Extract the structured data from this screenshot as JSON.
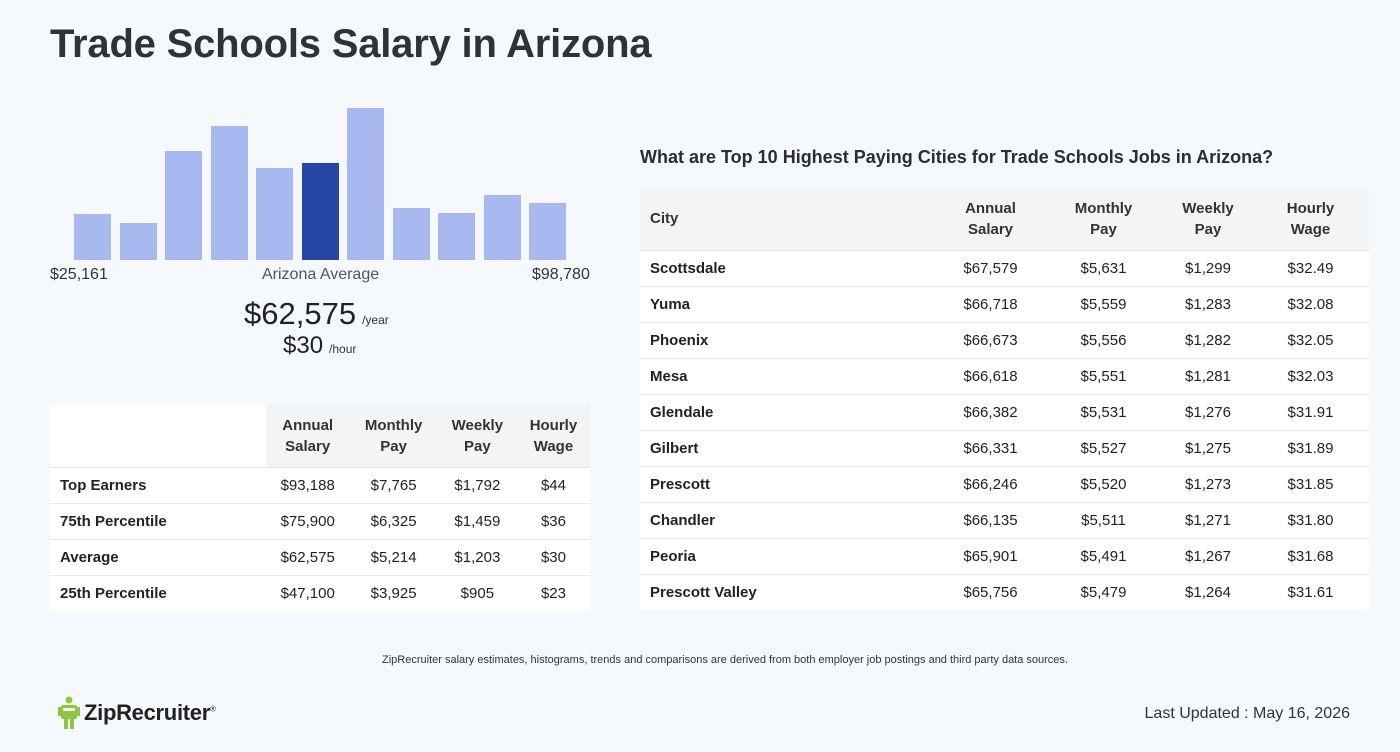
{
  "title": "Trade Schools Salary in Arizona",
  "histogram": {
    "values": [
      46,
      37,
      109,
      134,
      92,
      97,
      152,
      52,
      47,
      65,
      57
    ],
    "highlight_index": 5,
    "highlight_color": "#2747a6",
    "bar_color": "#a8b8f0",
    "min_label": "$25,161",
    "max_label": "$98,780",
    "mid_label": "Arizona Average"
  },
  "average": {
    "yearly": "$62,575",
    "yearly_unit": "/year",
    "hourly": "$30",
    "hourly_unit": "/hour"
  },
  "percentile_table": {
    "headers": [
      "",
      "Annual\nSalary",
      "Monthly\nPay",
      "Weekly\nPay",
      "Hourly\nWage"
    ],
    "rows": [
      {
        "label": "Top Earners",
        "annual": "$93,188",
        "monthly": "$7,765",
        "weekly": "$1,792",
        "hourly": "$44"
      },
      {
        "label": "75th Percentile",
        "annual": "$75,900",
        "monthly": "$6,325",
        "weekly": "$1,459",
        "hourly": "$36"
      },
      {
        "label": "Average",
        "annual": "$62,575",
        "monthly": "$5,214",
        "weekly": "$1,203",
        "hourly": "$30"
      },
      {
        "label": "25th Percentile",
        "annual": "$47,100",
        "monthly": "$3,925",
        "weekly": "$905",
        "hourly": "$23"
      }
    ]
  },
  "city_table": {
    "heading": "What are Top 10 Highest Paying Cities for Trade Schools Jobs in Arizona?",
    "headers": [
      "City",
      "Annual\nSalary",
      "Monthly\nPay",
      "Weekly\nPay",
      "Hourly\nWage"
    ],
    "rows": [
      {
        "city": "Scottsdale",
        "annual": "$67,579",
        "monthly": "$5,631",
        "weekly": "$1,299",
        "hourly": "$32.49"
      },
      {
        "city": "Yuma",
        "annual": "$66,718",
        "monthly": "$5,559",
        "weekly": "$1,283",
        "hourly": "$32.08"
      },
      {
        "city": "Phoenix",
        "annual": "$66,673",
        "monthly": "$5,556",
        "weekly": "$1,282",
        "hourly": "$32.05"
      },
      {
        "city": "Mesa",
        "annual": "$66,618",
        "monthly": "$5,551",
        "weekly": "$1,281",
        "hourly": "$32.03"
      },
      {
        "city": "Glendale",
        "annual": "$66,382",
        "monthly": "$5,531",
        "weekly": "$1,276",
        "hourly": "$31.91"
      },
      {
        "city": "Gilbert",
        "annual": "$66,331",
        "monthly": "$5,527",
        "weekly": "$1,275",
        "hourly": "$31.89"
      },
      {
        "city": "Prescott",
        "annual": "$66,246",
        "monthly": "$5,520",
        "weekly": "$1,273",
        "hourly": "$31.85"
      },
      {
        "city": "Chandler",
        "annual": "$66,135",
        "monthly": "$5,511",
        "weekly": "$1,271",
        "hourly": "$31.80"
      },
      {
        "city": "Peoria",
        "annual": "$65,901",
        "monthly": "$5,491",
        "weekly": "$1,267",
        "hourly": "$31.68"
      },
      {
        "city": "Prescott Valley",
        "annual": "$65,756",
        "monthly": "$5,479",
        "weekly": "$1,264",
        "hourly": "$31.61"
      }
    ]
  },
  "footnote": "ZipRecruiter salary estimates, histograms, trends and comparisons are derived from both employer job postings and third party data sources.",
  "logo": {
    "text": "ZipRecruiter",
    "mark": "®",
    "icon": "ziprecruiter-person-icon",
    "color": "#8ec63f"
  },
  "last_updated": "Last Updated : May 16, 2026"
}
